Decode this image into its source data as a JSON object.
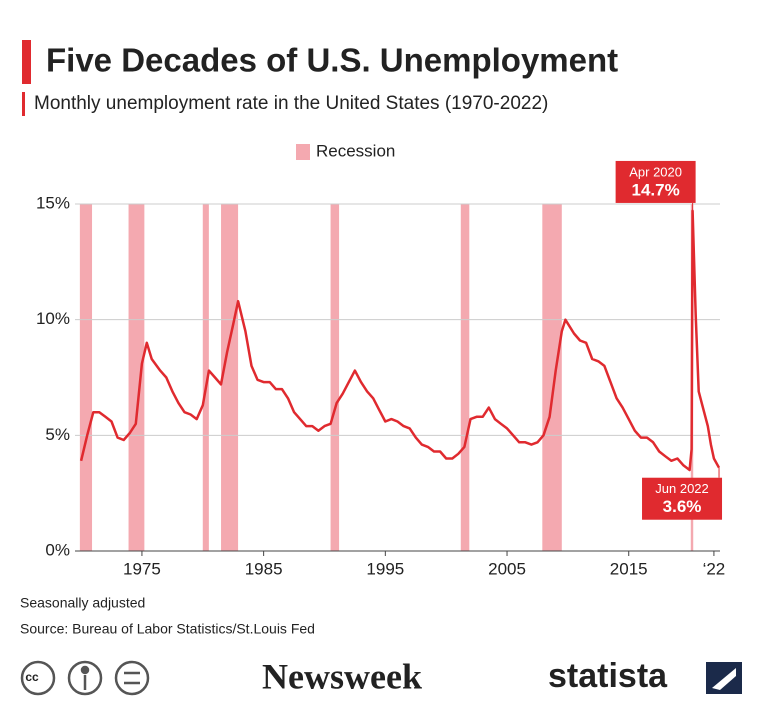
{
  "chart_data": {
    "type": "line",
    "title": "Five Decades of U.S. Unemployment",
    "subtitle": "Monthly unemployment rate in the United States (1970-2022)",
    "recession_label": "Recession",
    "recession_color": "#f4a9b0",
    "recessions": [
      [
        1969.9,
        1970.9
      ],
      [
        1973.9,
        1975.2
      ],
      [
        1980.0,
        1980.5
      ],
      [
        1981.5,
        1982.9
      ],
      [
        1990.5,
        1991.2
      ],
      [
        2001.2,
        2001.9
      ],
      [
        2007.9,
        2009.5
      ],
      [
        2020.1,
        2020.3
      ]
    ],
    "color": "#e02a2f",
    "x": [
      1970.0,
      1970.5,
      1971.0,
      1971.5,
      1972.0,
      1972.5,
      1973.0,
      1973.5,
      1974.0,
      1974.5,
      1975.0,
      1975.4,
      1975.8,
      1976.5,
      1977.0,
      1977.5,
      1978.0,
      1978.5,
      1979.0,
      1979.5,
      1980.0,
      1980.5,
      1981.0,
      1981.5,
      1982.0,
      1982.5,
      1982.9,
      1983.5,
      1984.0,
      1984.5,
      1985.0,
      1985.5,
      1986.0,
      1986.5,
      1987.0,
      1987.5,
      1988.0,
      1988.5,
      1989.0,
      1989.5,
      1990.0,
      1990.5,
      1991.0,
      1991.5,
      1992.0,
      1992.5,
      1993.0,
      1993.5,
      1994.0,
      1994.5,
      1995.0,
      1995.5,
      1996.0,
      1996.5,
      1997.0,
      1997.5,
      1998.0,
      1998.5,
      1999.0,
      1999.5,
      2000.0,
      2000.5,
      2001.0,
      2001.5,
      2002.0,
      2002.5,
      2003.0,
      2003.5,
      2004.0,
      2004.5,
      2005.0,
      2005.5,
      2006.0,
      2006.5,
      2007.0,
      2007.5,
      2008.0,
      2008.5,
      2009.0,
      2009.5,
      2009.8,
      2010.5,
      2011.0,
      2011.5,
      2012.0,
      2012.5,
      2013.0,
      2013.5,
      2014.0,
      2014.5,
      2015.0,
      2015.5,
      2016.0,
      2016.5,
      2017.0,
      2017.5,
      2018.0,
      2018.5,
      2019.0,
      2019.5,
      2020.0,
      2020.17,
      2020.25,
      2020.5,
      2020.75,
      2021.0,
      2021.5,
      2021.75,
      2022.0,
      2022.42
    ],
    "values": [
      3.9,
      5.0,
      6.0,
      6.0,
      5.8,
      5.6,
      4.9,
      4.8,
      5.1,
      5.5,
      8.1,
      9.0,
      8.3,
      7.8,
      7.5,
      6.9,
      6.4,
      6.0,
      5.9,
      5.7,
      6.3,
      7.8,
      7.5,
      7.2,
      8.6,
      9.8,
      10.8,
      9.5,
      8.0,
      7.4,
      7.3,
      7.3,
      7.0,
      7.0,
      6.6,
      6.0,
      5.7,
      5.4,
      5.4,
      5.2,
      5.4,
      5.5,
      6.4,
      6.8,
      7.3,
      7.8,
      7.3,
      6.9,
      6.6,
      6.1,
      5.6,
      5.7,
      5.6,
      5.4,
      5.3,
      4.9,
      4.6,
      4.5,
      4.3,
      4.3,
      4.0,
      4.0,
      4.2,
      4.5,
      5.7,
      5.8,
      5.8,
      6.2,
      5.7,
      5.5,
      5.3,
      5.0,
      4.7,
      4.7,
      4.6,
      4.7,
      5.0,
      5.8,
      7.8,
      9.5,
      10.0,
      9.4,
      9.1,
      9.0,
      8.3,
      8.2,
      8.0,
      7.3,
      6.6,
      6.2,
      5.7,
      5.2,
      4.9,
      4.9,
      4.7,
      4.3,
      4.1,
      3.9,
      4.0,
      3.7,
      3.5,
      4.4,
      14.7,
      10.2,
      6.9,
      6.4,
      5.4,
      4.6,
      4.0,
      3.6
    ],
    "xlim": [
      1969.5,
      2022.5
    ],
    "xticks": [
      1975,
      1985,
      1995,
      2005,
      2015,
      {
        "value": 2022,
        "label": "‘22"
      }
    ],
    "ylim": [
      0,
      15
    ],
    "yticks": [
      {
        "value": 0,
        "label": "0%"
      },
      {
        "value": 5,
        "label": "5%"
      },
      {
        "value": 10,
        "label": "10%"
      },
      {
        "value": 15,
        "label": "15%"
      }
    ],
    "grid": true,
    "annotations": [
      {
        "x": 2020.25,
        "value": 14.7,
        "date": "Apr 2020",
        "label": "14.7%",
        "side": "above"
      },
      {
        "x": 2022.42,
        "value": 3.6,
        "date": "Jun 2022",
        "label": "3.6%",
        "side": "below"
      }
    ],
    "notes": [
      "Seasonally adjusted",
      "Source: Bureau of Labor Statistics/St.Louis Fed"
    ],
    "brands": [
      "Newsweek",
      "statista"
    ]
  }
}
